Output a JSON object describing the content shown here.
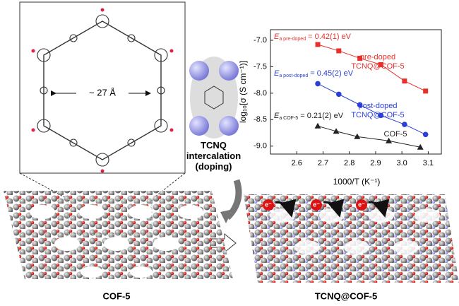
{
  "chart_data": {
    "type": "scatter",
    "xlabel": "1000/T (K⁻¹)",
    "ylabel": "log₁₀[σ (S cm⁻¹)]",
    "xlim": [
      2.5,
      3.15
    ],
    "ylim": [
      -9.15,
      -6.8
    ],
    "xticks": [
      2.6,
      2.7,
      2.8,
      2.9,
      {
        "value": 3,
        "label": "3.0"
      },
      3.1
    ],
    "yticks": [
      {
        "value": -7,
        "label": "-7.0"
      },
      -7.5,
      {
        "value": -8,
        "label": "-8.0"
      },
      -8.5,
      {
        "value": -9,
        "label": "-9.0"
      }
    ],
    "series": [
      {
        "name": "pre-doped TCNQ@COF-5",
        "color": "#e8302a",
        "marker": "square",
        "x": [
          2.68,
          2.76,
          2.84,
          2.92,
          3.01,
          3.09
        ],
        "values": [
          -7.08,
          -7.2,
          -7.34,
          -7.46,
          -7.77,
          -7.96
        ],
        "annotation": {
          "symbol": "E",
          "subscript": "a pre-doped",
          "text": " = 0.42(1) eV"
        }
      },
      {
        "name": "post-doped TCNQ@COF-5",
        "color": "#2a3fd6",
        "marker": "circle",
        "x": [
          2.68,
          2.76,
          2.84,
          2.92,
          3.01,
          3.09
        ],
        "values": [
          -7.82,
          -8.02,
          -8.22,
          -8.42,
          -8.59,
          -8.78
        ],
        "annotation": {
          "symbol": "E",
          "subscript": "a post-doped",
          "text": " = 0.45(2) eV"
        }
      },
      {
        "name": "COF-5",
        "color": "#222222",
        "marker": "triangle",
        "x": [
          2.68,
          2.75,
          2.83,
          2.95,
          3.07
        ],
        "values": [
          -8.62,
          -8.72,
          -8.82,
          -8.9,
          -9.02
        ],
        "annotation": {
          "symbol": "E",
          "subscript": "a COF-5",
          "text": " = 0.21(2) eV"
        }
      }
    ]
  },
  "labels": {
    "pore": "~ 27 Å",
    "doping": "TCNQ intercalation (doping)",
    "left": "COF-5",
    "right": "TCNQ@COF-5",
    "electron": "e⁻"
  }
}
